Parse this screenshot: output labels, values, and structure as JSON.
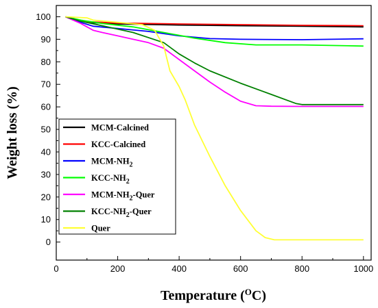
{
  "chart_data": {
    "type": "line",
    "title": "",
    "xlabel": "Temperature (",
    "xlabel_sup": "O",
    "xlabel_end": "C)",
    "ylabel": "Weight loss (%)",
    "xlim": [
      0,
      1025
    ],
    "ylim": [
      -8,
      105
    ],
    "x_ticks": [
      0,
      200,
      400,
      600,
      800,
      1000
    ],
    "y_ticks": [
      0,
      10,
      20,
      30,
      40,
      50,
      60,
      70,
      80,
      90,
      100
    ],
    "x_tick_labels": [
      "0",
      "200",
      "400",
      "600",
      "800",
      "1000"
    ],
    "y_tick_labels": [
      "0",
      "10",
      "20",
      "30",
      "40",
      "50",
      "60",
      "70",
      "80",
      "90",
      "100"
    ],
    "grid": false,
    "legend_position": "bottom-left",
    "series": [
      {
        "name": "MCM-Calcined",
        "name_main": "MCM-Calcined",
        "name_sub": "",
        "name_tail": "",
        "color": "#000000",
        "points": [
          [
            30,
            100
          ],
          [
            60,
            99
          ],
          [
            100,
            97.5
          ],
          [
            200,
            96.8
          ],
          [
            400,
            96.3
          ],
          [
            600,
            96
          ],
          [
            800,
            95.8
          ],
          [
            1000,
            95.5
          ]
        ]
      },
      {
        "name": "KCC-Calcined",
        "name_main": "KCC-Calcined",
        "name_sub": "",
        "name_tail": "",
        "color": "#ff0000",
        "points": [
          [
            30,
            100
          ],
          [
            60,
            99
          ],
          [
            100,
            97.8
          ],
          [
            200,
            97.2
          ],
          [
            400,
            96.8
          ],
          [
            600,
            96.5
          ],
          [
            800,
            96.2
          ],
          [
            1000,
            96
          ]
        ]
      },
      {
        "name": "MCM-NH2",
        "name_main": "MCM-NH",
        "name_sub": "2",
        "name_tail": "",
        "color": "#0000ff",
        "points": [
          [
            30,
            100
          ],
          [
            80,
            97.5
          ],
          [
            120,
            95.8
          ],
          [
            200,
            94.8
          ],
          [
            300,
            93.5
          ],
          [
            400,
            91.5
          ],
          [
            500,
            90.3
          ],
          [
            600,
            90
          ],
          [
            800,
            89.8
          ],
          [
            1000,
            90.2
          ]
        ]
      },
      {
        "name": "KCC-NH2",
        "name_main": "KCC-NH",
        "name_sub": "2",
        "name_tail": "",
        "color": "#00ff00",
        "points": [
          [
            30,
            100
          ],
          [
            80,
            98.5
          ],
          [
            150,
            97
          ],
          [
            250,
            95.5
          ],
          [
            350,
            93
          ],
          [
            450,
            90.5
          ],
          [
            550,
            88.5
          ],
          [
            650,
            87.5
          ],
          [
            800,
            87.5
          ],
          [
            1000,
            87
          ]
        ]
      },
      {
        "name": "MCM-NH2-Quer",
        "name_main": "MCM-NH",
        "name_sub": "2",
        "name_tail": "-Quer",
        "color": "#ff00ff",
        "points": [
          [
            30,
            100
          ],
          [
            80,
            97
          ],
          [
            120,
            94
          ],
          [
            150,
            93
          ],
          [
            200,
            91.5
          ],
          [
            250,
            90
          ],
          [
            300,
            88.5
          ],
          [
            350,
            86
          ],
          [
            400,
            81
          ],
          [
            450,
            76
          ],
          [
            500,
            71
          ],
          [
            550,
            66.5
          ],
          [
            600,
            62.5
          ],
          [
            650,
            60.5
          ],
          [
            700,
            60.3
          ],
          [
            800,
            60.2
          ],
          [
            1000,
            60.2
          ]
        ]
      },
      {
        "name": "KCC-NH2-Quer",
        "name_main": "KCC-NH",
        "name_sub": "2",
        "name_tail": "-Quer",
        "color": "#008000",
        "points": [
          [
            30,
            100
          ],
          [
            80,
            98
          ],
          [
            150,
            96
          ],
          [
            250,
            93
          ],
          [
            350,
            88.5
          ],
          [
            400,
            83.5
          ],
          [
            450,
            79.5
          ],
          [
            500,
            76
          ],
          [
            600,
            70.5
          ],
          [
            700,
            65.5
          ],
          [
            780,
            61.5
          ],
          [
            800,
            61
          ],
          [
            1000,
            61
          ]
        ]
      },
      {
        "name": "Quer",
        "name_main": "Quer",
        "name_sub": "",
        "name_tail": "",
        "color": "#ffff33",
        "points": [
          [
            30,
            100
          ],
          [
            100,
            99.5
          ],
          [
            120,
            98.5
          ],
          [
            200,
            97.5
          ],
          [
            280,
            96.5
          ],
          [
            320,
            94
          ],
          [
            350,
            87
          ],
          [
            370,
            76
          ],
          [
            400,
            69
          ],
          [
            420,
            63
          ],
          [
            450,
            52
          ],
          [
            500,
            38
          ],
          [
            550,
            25
          ],
          [
            600,
            14
          ],
          [
            650,
            5
          ],
          [
            680,
            2
          ],
          [
            710,
            1
          ],
          [
            800,
            1
          ],
          [
            1000,
            1
          ]
        ]
      }
    ]
  }
}
